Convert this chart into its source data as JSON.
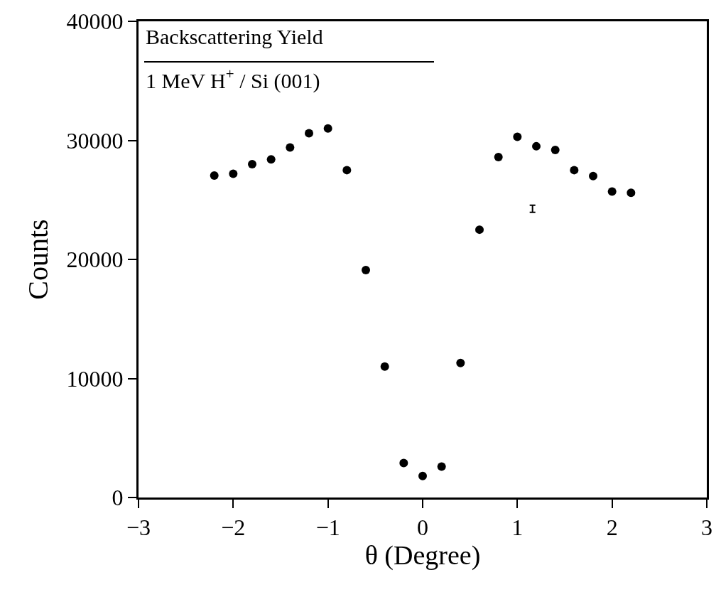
{
  "chart_data": {
    "type": "scatter",
    "xlabel": "θ (Degree)",
    "ylabel": "Counts",
    "annotations": [
      "Backscattering Yield",
      "1 MeV H$^{+}$ / Si (001)"
    ],
    "series": [
      {
        "color": "#000000",
        "marker": "circle",
        "x": [
          -2.2,
          -2.0,
          -1.8,
          -1.6,
          -1.4,
          -1.2,
          -1.0,
          -0.8,
          -0.6,
          -0.4,
          -0.2,
          0.0,
          0.2,
          0.4,
          0.6,
          0.8,
          1.0,
          1.2,
          1.4,
          1.6,
          1.8,
          2.0,
          2.2
        ],
        "values": [
          27050,
          27200,
          28000,
          28400,
          29400,
          30600,
          31000,
          27500,
          19100,
          11000,
          2900,
          1800,
          2600,
          11300,
          22500,
          28600,
          30300,
          29500,
          29200,
          27500,
          27000,
          25700,
          25600
        ]
      },
      {
        "color": "#000000",
        "x": [
          1.16
        ],
        "values": [
          24250
        ],
        "errors": [
          300
        ]
      }
    ],
    "xlim": [
      -3,
      3
    ],
    "xticks": [
      -3,
      -2,
      -1,
      0,
      1,
      2,
      3
    ],
    "ylim": [
      0,
      40000
    ],
    "yticks": [
      0,
      10000,
      20000,
      30000,
      40000
    ],
    "grid": false
  }
}
